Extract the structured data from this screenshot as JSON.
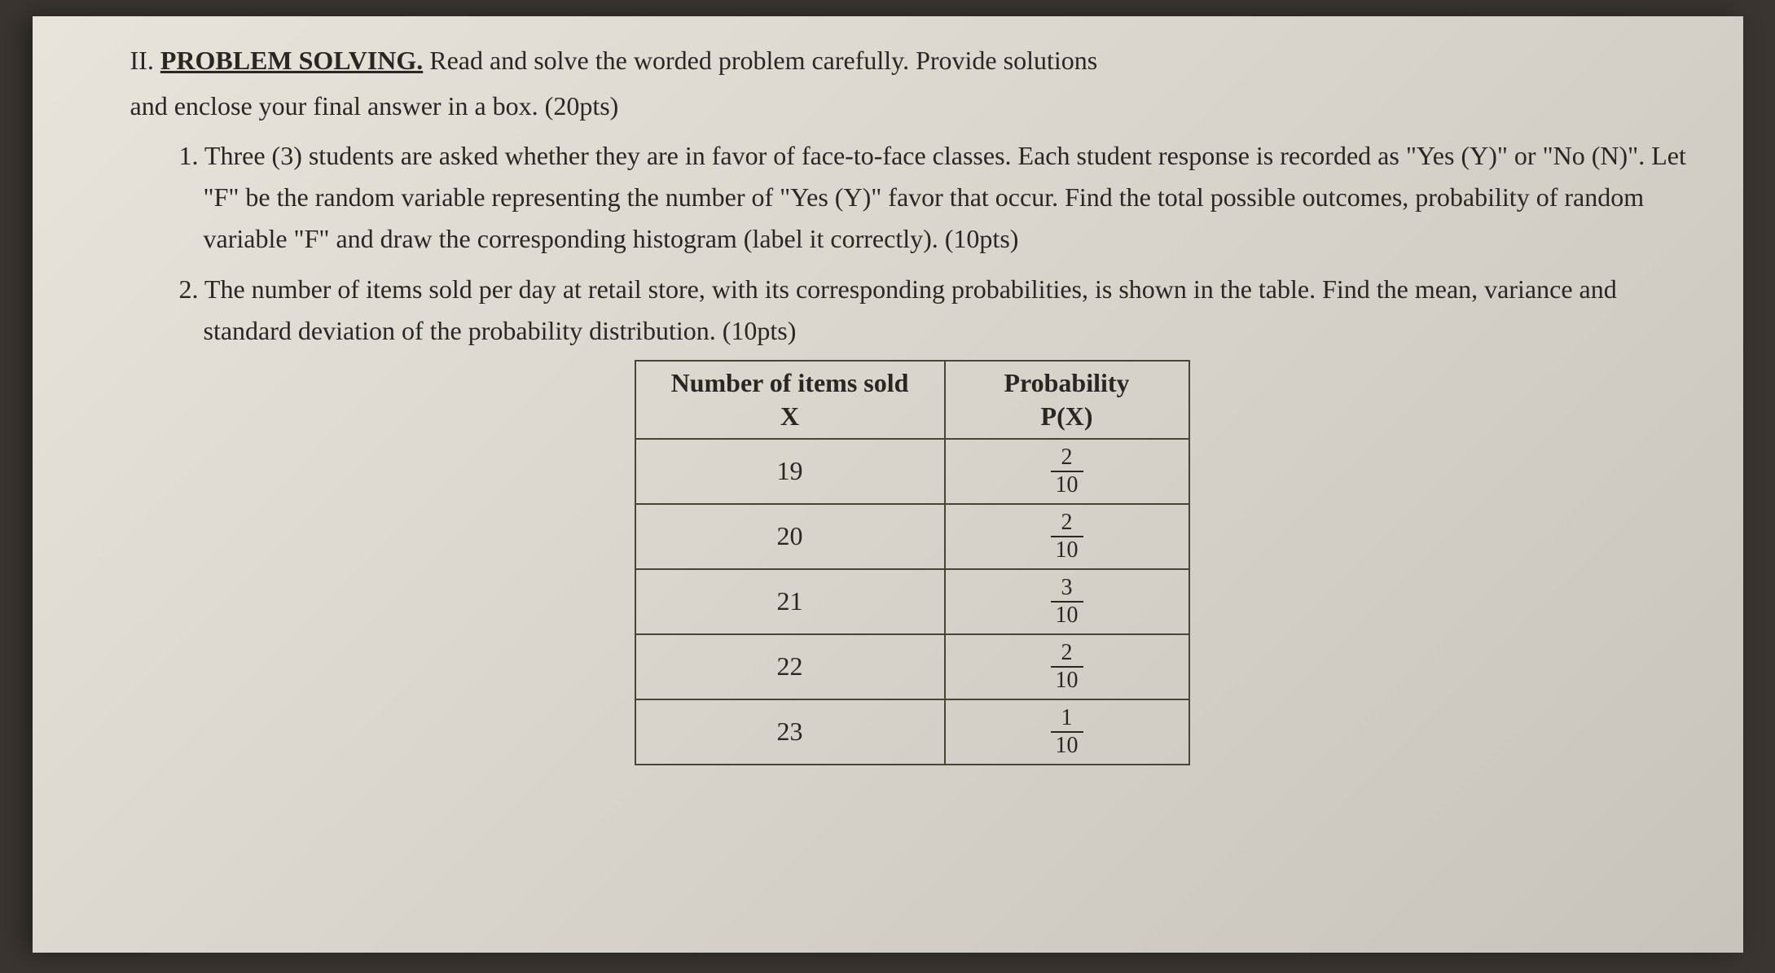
{
  "section": {
    "number": "II.",
    "title": "PROBLEM SOLVING.",
    "instructions_part1": "Read and solve the worded problem carefully. Provide solutions",
    "instructions_part2": "and enclose your final answer in a box. (20pts)"
  },
  "problems": {
    "p1": {
      "number": "1.",
      "text": "Three (3) students are asked whether they are in favor of face-to-face classes. Each student response is recorded as \"Yes (Y)\" or \"No (N)\". Let \"F\" be the random variable representing the number of \"Yes (Y)\" favor that occur. Find the total possible outcomes, probability of random variable \"F\" and draw the corresponding histogram (label it correctly). (10pts)"
    },
    "p2": {
      "number": "2.",
      "text": "The number of items sold per day at retail store, with its corresponding probabilities, is shown in the table. Find the mean, variance and standard deviation of the probability distribution. (10pts)"
    }
  },
  "table": {
    "header": {
      "col1_line1": "Number of items sold",
      "col1_line2": "X",
      "col2_line1": "Probability",
      "col2_line2": "P(X)"
    },
    "rows": [
      {
        "x": "19",
        "num": "2",
        "den": "10"
      },
      {
        "x": "20",
        "num": "2",
        "den": "10"
      },
      {
        "x": "21",
        "num": "3",
        "den": "10"
      },
      {
        "x": "22",
        "num": "2",
        "den": "10"
      },
      {
        "x": "23",
        "num": "1",
        "den": "10"
      }
    ]
  },
  "styling": {
    "background_color": "#3a3530",
    "page_gradient_start": "#e8e4dc",
    "page_gradient_mid": "#d8d4cc",
    "page_gradient_end": "#c8c4bc",
    "text_color": "#2a2622",
    "border_color": "#4a4438",
    "font_family": "Times New Roman",
    "body_fontsize": 32,
    "fraction_fontsize": 28,
    "table_col1_width": 380,
    "table_col2_width": 300
  }
}
